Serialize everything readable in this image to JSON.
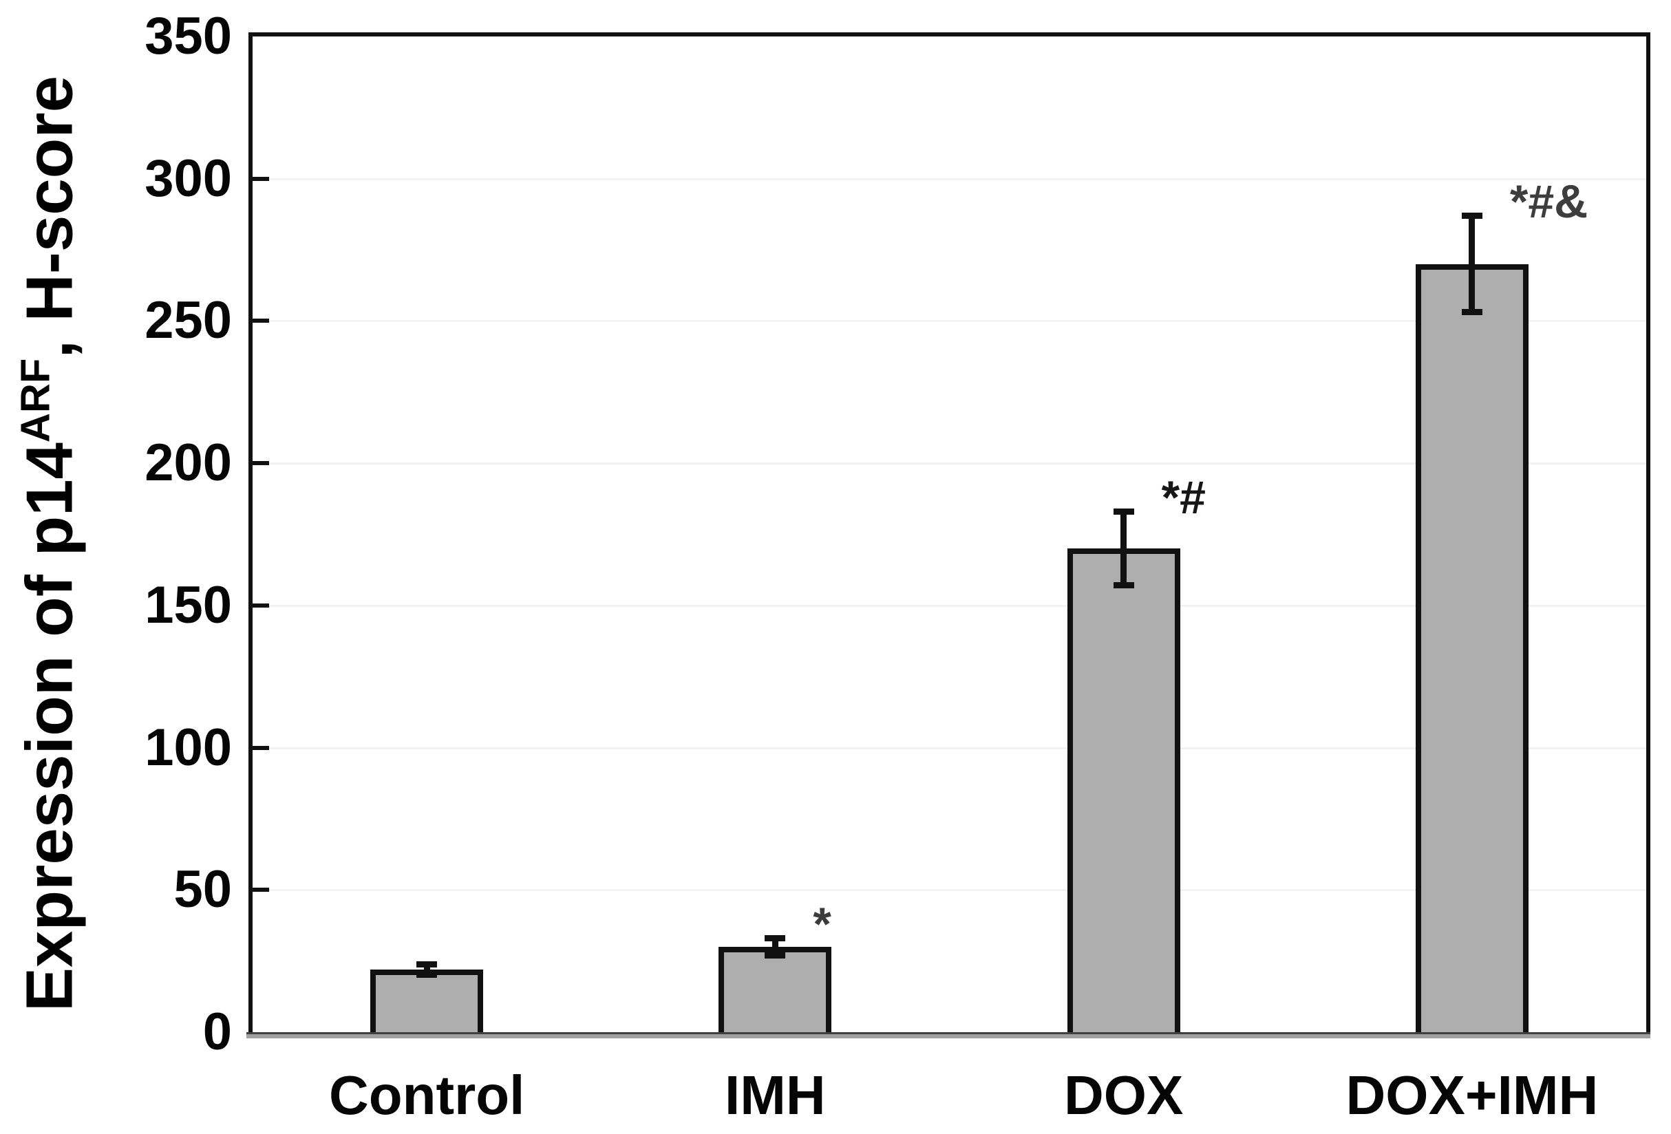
{
  "y_axis": {
    "title_prefix": "Expression of p14",
    "title_sup": "ARF",
    "title_suffix": ", H-score",
    "tick_labels": [
      "0",
      "50",
      "100",
      "150",
      "200",
      "250",
      "300",
      "350"
    ],
    "min": 0,
    "max": 350,
    "step": 50
  },
  "chart_data": {
    "type": "bar",
    "title": "",
    "xlabel": "",
    "ylabel": "Expression of p14^ARF, H-score",
    "categories": [
      "Control",
      "IMH",
      "DOX",
      "DOX+IMH"
    ],
    "values": [
      22,
      30,
      170,
      270
    ],
    "errors": [
      3,
      4,
      14,
      18
    ],
    "annotations": [
      "",
      "*",
      "*#",
      "*#&"
    ],
    "annotation_colors": [
      "",
      "#3b3b3b",
      "#161616",
      "#3d3d3d"
    ],
    "ylim": [
      0,
      350
    ],
    "ytick_step": 50,
    "grid": "faint-horizontal",
    "legend": "none",
    "bar_color": "#aeaeae",
    "bar_border_color": "#111111",
    "error_color": "#111111"
  }
}
